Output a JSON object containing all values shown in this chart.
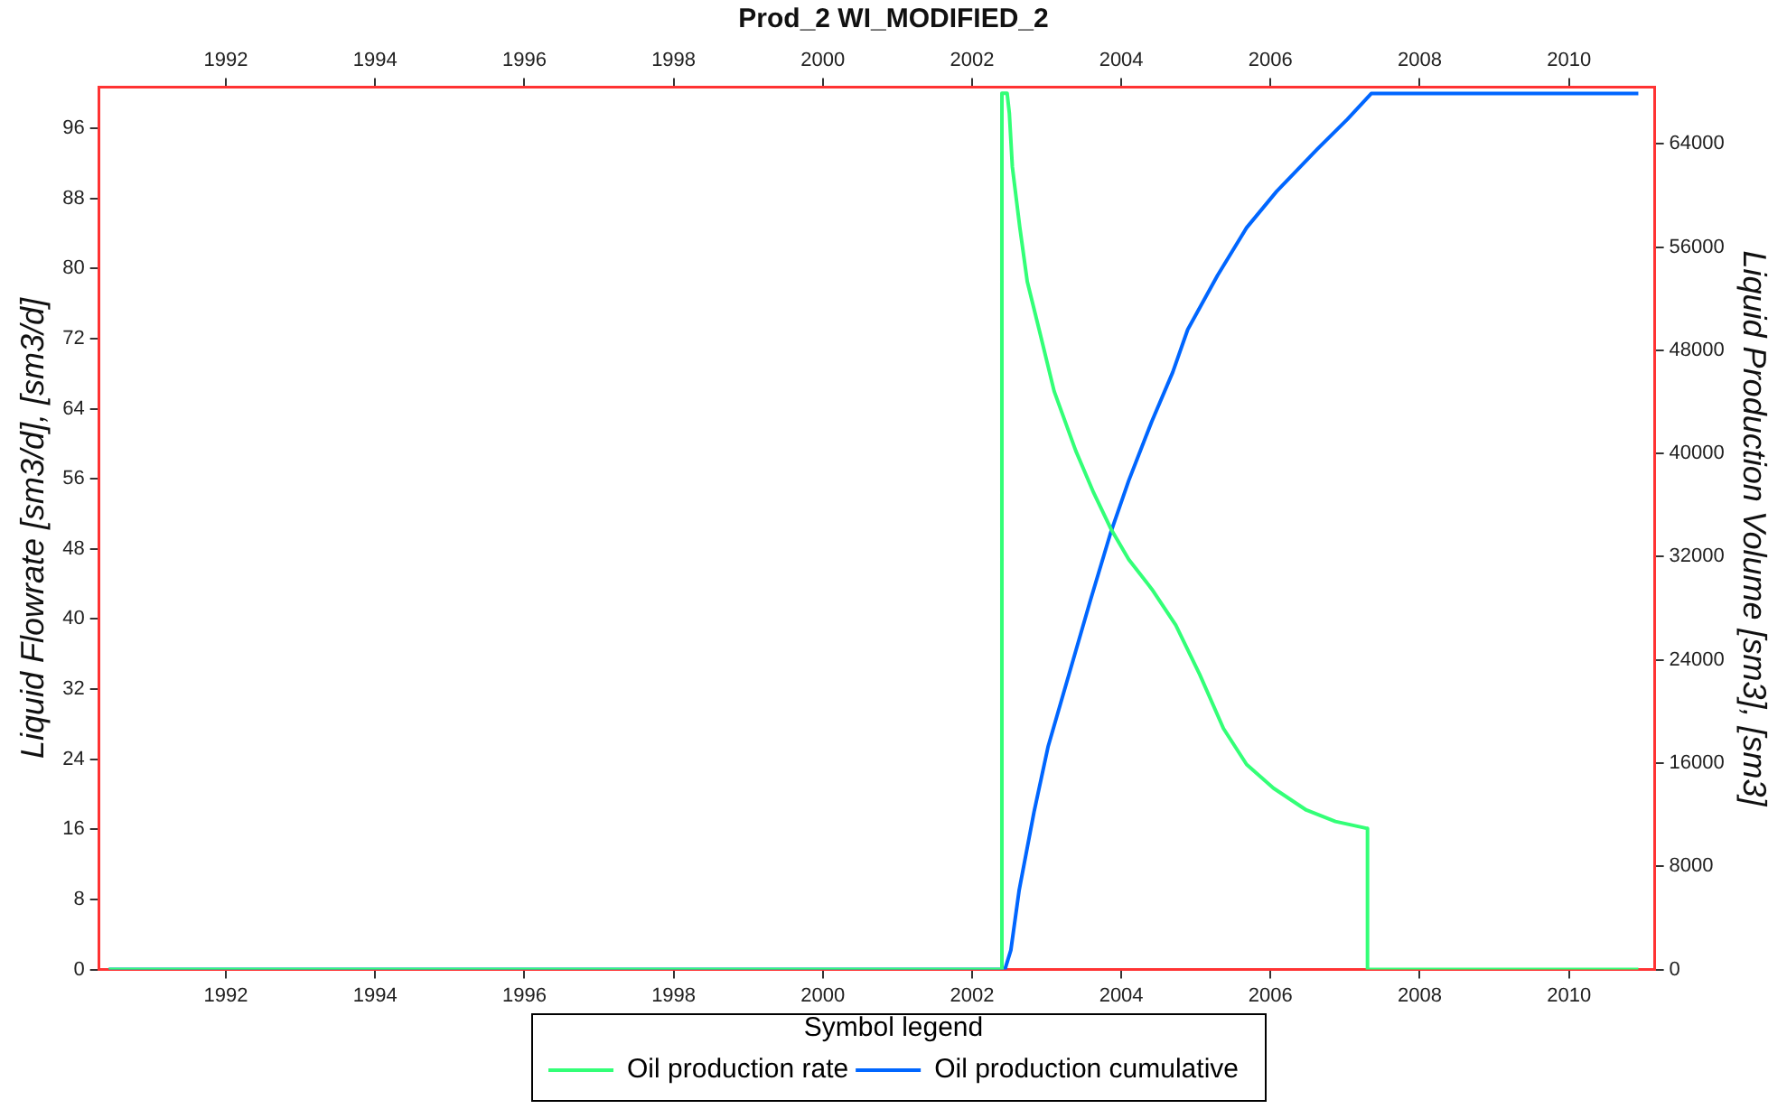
{
  "chart_data": {
    "type": "line",
    "title": "Prod_2 WI_MODIFIED_2",
    "ylabel": "Liquid Flowrate [sm3/d], [sm3/d]",
    "y2label": "Liquid Production Volume [sm3], [sm3]",
    "legend_title": "Symbol legend",
    "legend": "bottom",
    "grid": false,
    "marker": "none",
    "line_style": "solid",
    "xlim": [
      1990.3,
      2011.15
    ],
    "xticks": [
      1992,
      1994,
      1996,
      1998,
      2000,
      2002,
      2004,
      2006,
      2008,
      2010
    ],
    "x2lim": [
      1990.3,
      2011.15
    ],
    "x2ticks": [
      1992,
      1994,
      1996,
      1998,
      2000,
      2002,
      2004,
      2006,
      2008,
      2010
    ],
    "ylim": [
      0,
      100.7
    ],
    "yticks": [
      0,
      8,
      16,
      24,
      32,
      40,
      48,
      56,
      64,
      72,
      80,
      88,
      96
    ],
    "y2lim": [
      0,
      68400
    ],
    "y2ticks": [
      0,
      8000,
      16000,
      24000,
      32000,
      40000,
      48000,
      56000,
      64000
    ],
    "series": [
      {
        "name": "Oil production rate",
        "color": "#33ff77",
        "x": [
          1990.43,
          2002.4,
          2002.4,
          2002.47,
          2002.5,
          2002.54,
          2002.64,
          2002.74,
          2002.9,
          2003.1,
          2003.39,
          2003.63,
          2003.86,
          2004.1,
          2004.41,
          2004.73,
          2005.05,
          2005.37,
          2005.68,
          2006.04,
          2006.48,
          2006.87,
          2007.3,
          2007.3,
          2010.93
        ],
        "values": [
          0,
          0,
          100,
          100,
          97.7,
          91.6,
          84.7,
          78.5,
          73,
          66,
          59.2,
          54.4,
          50.3,
          46.8,
          43.4,
          39.3,
          33.7,
          27.5,
          23.4,
          20.7,
          18.2,
          16.9,
          16.1,
          0,
          0
        ]
      },
      {
        "name": "Oil production cumulative",
        "color": "#0066ff",
        "axis": "y2",
        "x": [
          1990.43,
          2002.44,
          2002.52,
          2002.63,
          2002.83,
          2003.02,
          2003.3,
          2003.58,
          2003.86,
          2004.1,
          2004.41,
          2004.69,
          2004.89,
          2005.29,
          2005.68,
          2006.08,
          2006.63,
          2007.03,
          2007.35,
          2010.93
        ],
        "values": [
          0,
          0,
          1500,
          6100,
          12200,
          17300,
          22900,
          28500,
          33900,
          37900,
          42500,
          46300,
          49600,
          53800,
          57500,
          60300,
          63600,
          65900,
          67900,
          67900
        ]
      }
    ]
  }
}
